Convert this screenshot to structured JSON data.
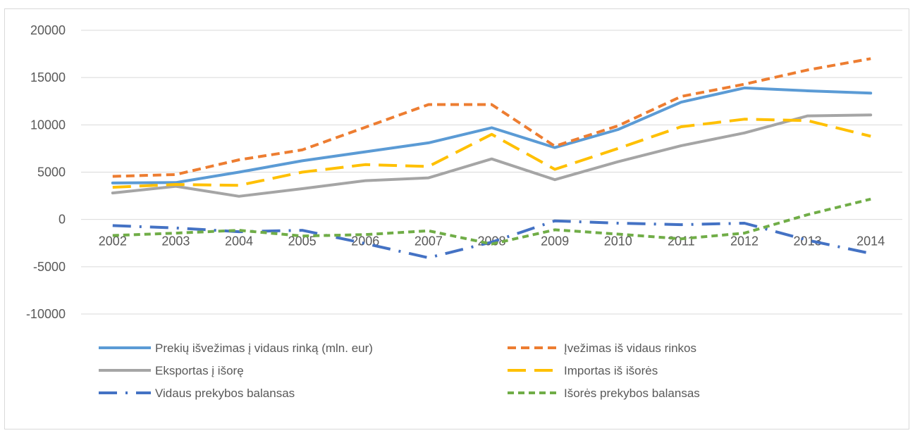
{
  "chart_data": {
    "type": "line",
    "title": "",
    "xlabel": "",
    "ylabel": "",
    "categories": [
      "2002",
      "2003",
      "2004",
      "2005",
      "2006",
      "2007",
      "2008",
      "2009",
      "2010",
      "2011",
      "2012",
      "2013",
      "2014"
    ],
    "ylim": [
      -10000,
      20000
    ],
    "yticks": [
      20000,
      15000,
      10000,
      5000,
      0,
      -5000,
      -10000
    ],
    "ytick_labels": [
      "20000",
      "15000",
      "10000",
      "5000",
      "0",
      "-5000",
      "-10000"
    ],
    "grid": "horizontal",
    "legend_position": "bottom",
    "series": [
      {
        "name": "Prekių išvežimas į vidaus rinką (mln. eur)",
        "color": "#5B9BD5",
        "dash": "solid",
        "values": [
          3850,
          3900,
          5000,
          6200,
          7150,
          8100,
          9700,
          7600,
          9500,
          12400,
          13900,
          13600,
          13350
        ]
      },
      {
        "name": "Įvežimas iš vidaus rinkos",
        "color": "#ED7D31",
        "dash": "dash",
        "values": [
          4550,
          4750,
          6300,
          7350,
          9750,
          12150,
          12150,
          7750,
          9900,
          13000,
          14300,
          15800,
          17000
        ]
      },
      {
        "name": "Eksportas į išorę",
        "color": "#A5A5A5",
        "dash": "solid",
        "values": [
          2800,
          3500,
          2450,
          3250,
          4100,
          4400,
          6400,
          4200,
          6100,
          7800,
          9150,
          10950,
          11050
        ]
      },
      {
        "name": "Importas iš išorės",
        "color": "#FFC000",
        "dash": "longdash",
        "values": [
          3400,
          3700,
          3600,
          5000,
          5800,
          5600,
          9000,
          5300,
          7500,
          9800,
          10600,
          10450,
          8800
        ]
      },
      {
        "name": "Vidaus prekybos balansas",
        "color": "#4472C4",
        "dash": "dashdot",
        "values": [
          -650,
          -900,
          -1300,
          -1150,
          -2550,
          -4050,
          -2400,
          -150,
          -400,
          -550,
          -400,
          -2200,
          -3600
        ]
      },
      {
        "name": "Išorės prekybos balansas",
        "color": "#70AD47",
        "dash": "shortdash",
        "values": [
          -1700,
          -1450,
          -1150,
          -1750,
          -1600,
          -1200,
          -2600,
          -1100,
          -1550,
          -2050,
          -1450,
          500,
          2150
        ]
      }
    ]
  }
}
